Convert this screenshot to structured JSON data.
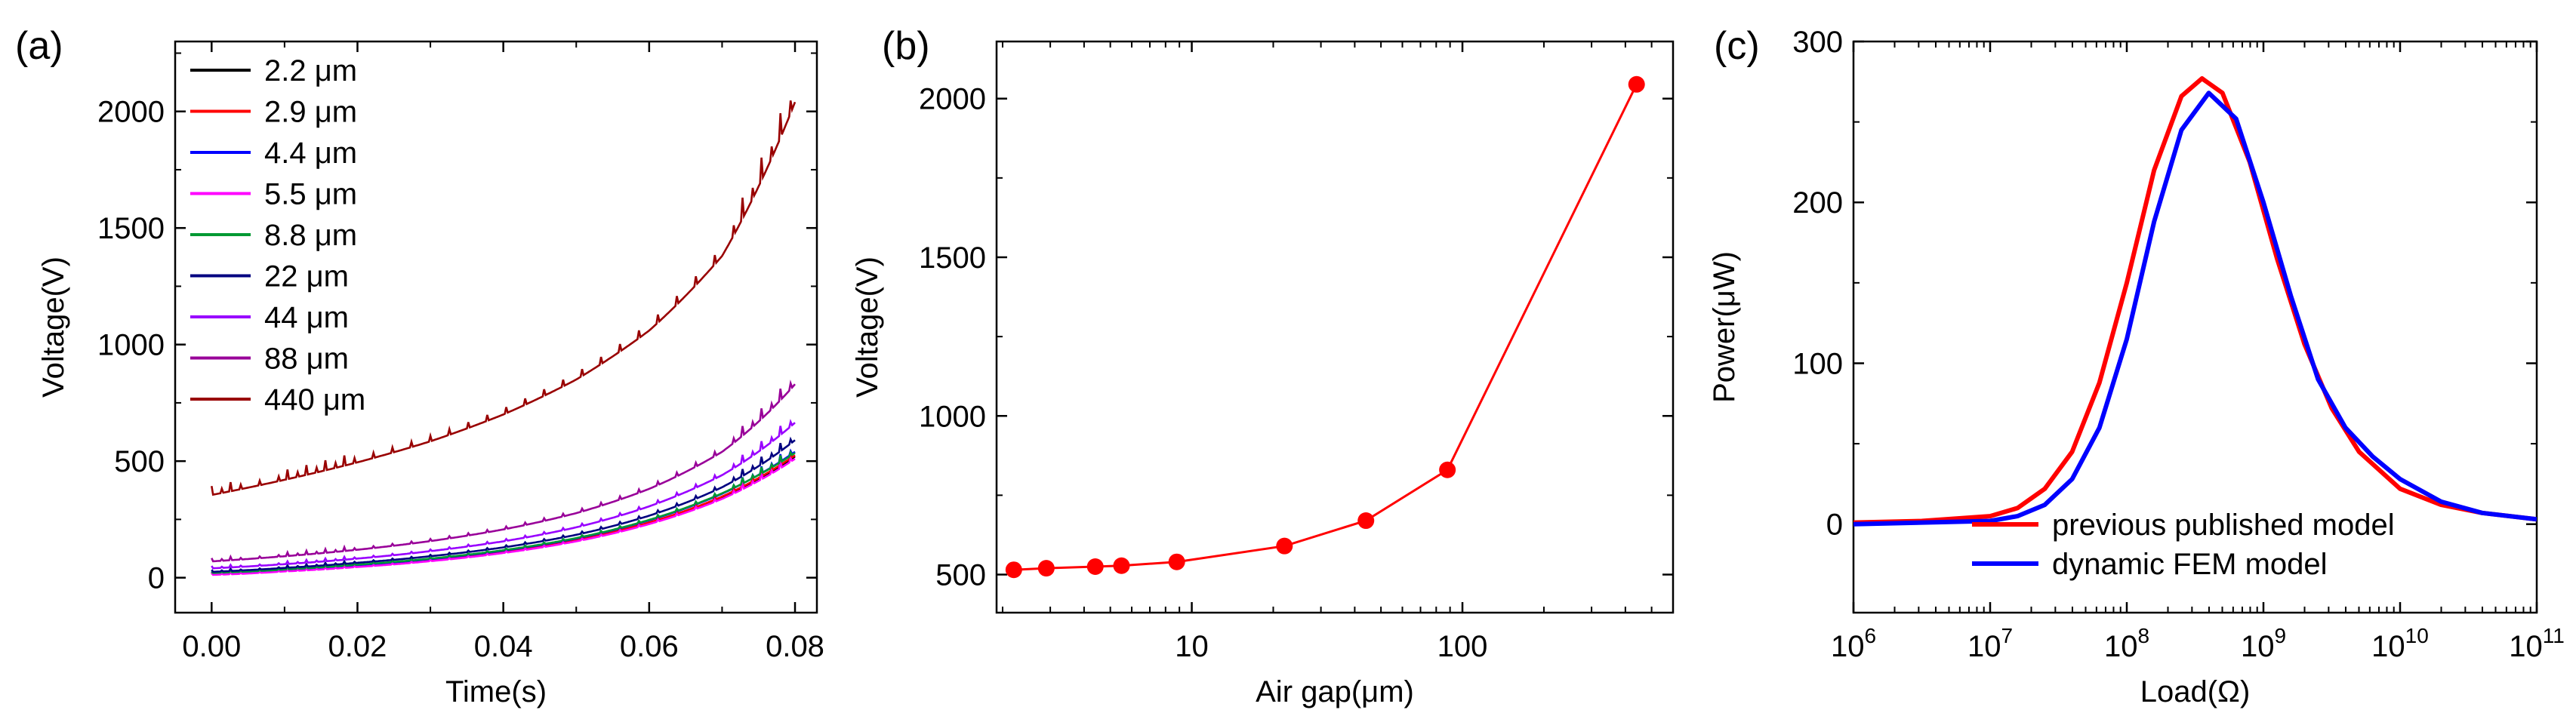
{
  "chart_data": [
    {
      "type": "line",
      "panel_label": "(a)",
      "xlabel": "Time(s)",
      "ylabel": "Voltage(V)",
      "xlim": [
        -0.005,
        0.083
      ],
      "ylim": [
        -150,
        2300
      ],
      "xticks": [
        0.0,
        0.02,
        0.04,
        0.06,
        0.08
      ],
      "xtick_labels": [
        "0.00",
        "0.02",
        "0.04",
        "0.06",
        "0.08"
      ],
      "yticks": [
        0,
        500,
        1000,
        1500,
        2000
      ],
      "ytick_labels": [
        "0",
        "500",
        "1000",
        "1500",
        "2000"
      ],
      "legend_position": "top-left",
      "grid": false,
      "series": [
        {
          "name": "2.2 μm",
          "color": "#000000",
          "x": [
            0,
            0.01,
            0.02,
            0.03,
            0.04,
            0.05,
            0.06,
            0.07,
            0.08
          ],
          "y": [
            15,
            30,
            50,
            75,
            110,
            160,
            235,
            345,
            520
          ],
          "spike": 40
        },
        {
          "name": "2.9 μm",
          "color": "#ff0000",
          "x": [
            0,
            0.01,
            0.02,
            0.03,
            0.04,
            0.05,
            0.06,
            0.07,
            0.08
          ],
          "y": [
            15,
            30,
            50,
            76,
            111,
            161,
            237,
            348,
            525
          ],
          "spike": 40
        },
        {
          "name": "4.4 μm",
          "color": "#0000ff",
          "x": [
            0,
            0.01,
            0.02,
            0.03,
            0.04,
            0.05,
            0.06,
            0.07,
            0.08
          ],
          "y": [
            18,
            33,
            54,
            80,
            116,
            168,
            246,
            360,
            540
          ],
          "spike": 45
        },
        {
          "name": "5.5 μm",
          "color": "#ff00ff",
          "x": [
            0,
            0.01,
            0.02,
            0.03,
            0.04,
            0.05,
            0.06,
            0.07,
            0.08
          ],
          "y": [
            12,
            27,
            46,
            71,
            106,
            156,
            230,
            338,
            510
          ],
          "spike": 40
        },
        {
          "name": "8.8 μm",
          "color": "#009933",
          "x": [
            0,
            0.01,
            0.02,
            0.03,
            0.04,
            0.05,
            0.06,
            0.07,
            0.08
          ],
          "y": [
            20,
            35,
            56,
            82,
            118,
            170,
            248,
            362,
            535
          ],
          "spike": 42
        },
        {
          "name": "22 μm",
          "color": "#000080",
          "x": [
            0,
            0.01,
            0.02,
            0.03,
            0.04,
            0.05,
            0.06,
            0.07,
            0.08
          ],
          "y": [
            25,
            42,
            64,
            92,
            130,
            184,
            266,
            388,
            590
          ],
          "spike": 50
        },
        {
          "name": "44 μm",
          "color": "#9900ff",
          "x": [
            0,
            0.01,
            0.02,
            0.03,
            0.04,
            0.05,
            0.06,
            0.07,
            0.08
          ],
          "y": [
            40,
            58,
            82,
            114,
            156,
            216,
            306,
            440,
            665
          ],
          "spike": 55
        },
        {
          "name": "88 μm",
          "color": "#990099",
          "x": [
            0,
            0.01,
            0.02,
            0.03,
            0.04,
            0.05,
            0.06,
            0.07,
            0.08
          ],
          "y": [
            70,
            92,
            120,
            157,
            207,
            277,
            381,
            540,
            830
          ],
          "spike": 70
        },
        {
          "name": "440 μm",
          "color": "#990000",
          "x": [
            0,
            0.01,
            0.02,
            0.03,
            0.04,
            0.05,
            0.06,
            0.07,
            0.08
          ],
          "y": [
            355,
            420,
            495,
            585,
            700,
            850,
            1060,
            1380,
            2040
          ],
          "spike": 150
        }
      ]
    },
    {
      "type": "line",
      "panel_label": "(b)",
      "xlabel": "Air gap(μm)",
      "ylabel": "Voltage(V)",
      "xscale": "log",
      "xlim": [
        1.9,
        600
      ],
      "ylim": [
        380,
        2180
      ],
      "xticks": [
        10,
        100
      ],
      "xtick_labels": [
        "10",
        "100"
      ],
      "yticks": [
        500,
        1000,
        1500,
        2000
      ],
      "ytick_labels": [
        "500",
        "1000",
        "1500",
        "2000"
      ],
      "grid": false,
      "series": [
        {
          "color": "#ff0000",
          "x": [
            2.2,
            2.9,
            4.4,
            5.5,
            8.8,
            22,
            44,
            88,
            440
          ],
          "y": [
            515,
            520,
            525,
            528,
            540,
            590,
            670,
            830,
            2045
          ]
        }
      ]
    },
    {
      "type": "line",
      "panel_label": "(c)",
      "xlabel": "Load(Ω)",
      "ylabel": "Power(μW)",
      "xscale": "log",
      "xlim": [
        1000000,
        100000000000
      ],
      "ylim": [
        -55,
        300
      ],
      "xticks_exp": [
        6,
        7,
        8,
        9,
        10,
        11
      ],
      "xtick_base": "10",
      "yticks": [
        0,
        100,
        200,
        300
      ],
      "ytick_labels": [
        "0",
        "100",
        "200",
        "300"
      ],
      "legend_position": "bottom-center",
      "grid": false,
      "series": [
        {
          "name": "previous published model",
          "color": "#ff0000",
          "x_log10": [
            6.0,
            6.5,
            7.0,
            7.2,
            7.4,
            7.6,
            7.8,
            8.0,
            8.2,
            8.4,
            8.55,
            8.7,
            8.9,
            9.1,
            9.3,
            9.5,
            9.7,
            10.0,
            10.3,
            10.6,
            11.0
          ],
          "y": [
            1,
            2,
            5,
            10,
            22,
            45,
            88,
            150,
            220,
            266,
            277,
            268,
            225,
            165,
            112,
            72,
            45,
            22,
            12,
            7,
            3
          ]
        },
        {
          "name": "dynamic FEM model",
          "color": "#0000ff",
          "x_log10": [
            6.0,
            6.5,
            7.0,
            7.2,
            7.4,
            7.6,
            7.8,
            8.0,
            8.2,
            8.4,
            8.6,
            8.8,
            9.0,
            9.2,
            9.4,
            9.6,
            9.8,
            10.0,
            10.3,
            10.6,
            11.0
          ],
          "y": [
            0,
            1,
            2,
            5,
            12,
            28,
            60,
            115,
            188,
            245,
            268,
            252,
            200,
            142,
            90,
            60,
            42,
            28,
            14,
            7,
            3
          ]
        }
      ]
    }
  ]
}
